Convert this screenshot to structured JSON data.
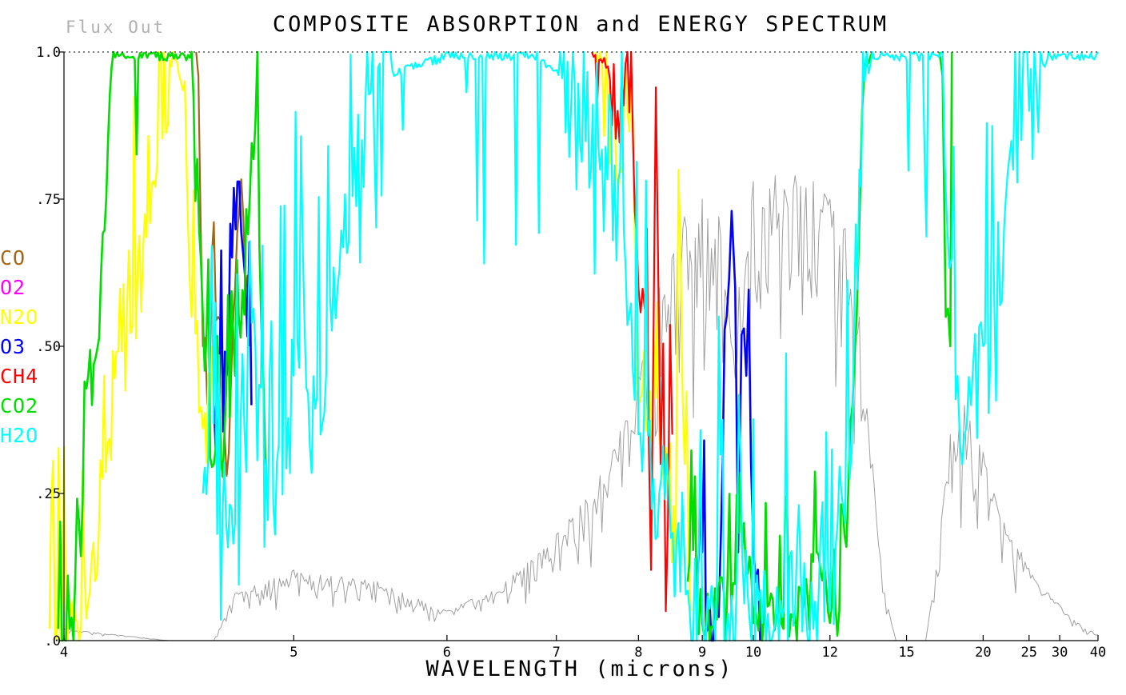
{
  "chart_data": {
    "type": "line",
    "title": "COMPOSITE ABSORPTION and ENERGY SPECTRUM",
    "flux_label": "Flux Out",
    "xlabel": "WAVELENGTH (microns)",
    "x_scale": "reciprocal",
    "xlim": [
      4,
      40
    ],
    "ylim": [
      0,
      1
    ],
    "x_ticks": [
      {
        "value": 4,
        "label": "4"
      },
      {
        "value": 5,
        "label": "5"
      },
      {
        "value": 6,
        "label": "6"
      },
      {
        "value": 7,
        "label": "7"
      },
      {
        "value": 8,
        "label": "8"
      },
      {
        "value": 9,
        "label": "9"
      },
      {
        "value": 10,
        "label": "10"
      },
      {
        "value": 12,
        "label": "12"
      },
      {
        "value": 15,
        "label": "15"
      },
      {
        "value": 20,
        "label": "20"
      },
      {
        "value": 25,
        "label": "25"
      },
      {
        "value": 30,
        "label": "30"
      },
      {
        "value": 40,
        "label": "40"
      }
    ],
    "y_ticks": [
      {
        "value": 0,
        "label": ".0"
      },
      {
        "value": 0.25,
        "label": ".25"
      },
      {
        "value": 0.5,
        "label": ".50"
      },
      {
        "value": 0.75,
        "label": ".75"
      },
      {
        "value": 1.0,
        "label": "1.0"
      }
    ],
    "legend": [
      {
        "label": "CO",
        "color": "#a0661a"
      },
      {
        "label": "O2",
        "color": "#ff00ff"
      },
      {
        "label": "N2O",
        "color": "#ffff00"
      },
      {
        "label": "O3",
        "color": "#0000ff"
      },
      {
        "label": "CH4",
        "color": "#ff0000"
      },
      {
        "label": "CO2",
        "color": "#00dd00"
      },
      {
        "label": "H2O",
        "color": "#00ffff"
      }
    ],
    "series": [
      {
        "key": "flux_out",
        "color": "#a0a0a0",
        "noise": 0.55,
        "seed": 11,
        "points": [
          [
            4.0,
            0.02
          ],
          [
            4.4,
            0.0
          ],
          [
            4.6,
            0.0
          ],
          [
            4.7,
            0.08
          ],
          [
            5.0,
            0.12
          ],
          [
            5.5,
            0.1
          ],
          [
            6.0,
            0.05
          ],
          [
            6.5,
            0.1
          ],
          [
            7.0,
            0.18
          ],
          [
            7.5,
            0.28
          ],
          [
            8.0,
            0.45
          ],
          [
            8.3,
            0.6
          ],
          [
            8.7,
            0.72
          ],
          [
            9.0,
            0.75
          ],
          [
            9.3,
            0.72
          ],
          [
            9.5,
            0.55
          ],
          [
            9.7,
            0.6
          ],
          [
            10.0,
            0.78
          ],
          [
            10.5,
            0.79
          ],
          [
            11.0,
            0.79
          ],
          [
            11.5,
            0.78
          ],
          [
            12.0,
            0.75
          ],
          [
            12.5,
            0.7
          ],
          [
            13.0,
            0.55
          ],
          [
            13.5,
            0.3
          ],
          [
            14.0,
            0.08
          ],
          [
            14.5,
            0.0
          ],
          [
            16.0,
            0.0
          ],
          [
            16.6,
            0.12
          ],
          [
            17.5,
            0.35
          ],
          [
            18.5,
            0.4
          ],
          [
            20.0,
            0.32
          ],
          [
            21.0,
            0.25
          ],
          [
            22.0,
            0.2
          ],
          [
            24.0,
            0.15
          ],
          [
            26.0,
            0.1
          ],
          [
            28.0,
            0.08
          ],
          [
            30.0,
            0.06
          ],
          [
            34.0,
            0.03
          ],
          [
            40.0,
            0.01
          ]
        ]
      },
      {
        "key": "CO",
        "color": "#a0661a",
        "noise": 0.5,
        "seed": 3,
        "points": [
          [
            4.52,
            1.0
          ],
          [
            4.55,
            0.5
          ],
          [
            4.58,
            0.38
          ],
          [
            4.62,
            0.55
          ],
          [
            4.66,
            0.28
          ],
          [
            4.7,
            0.6
          ],
          [
            4.74,
            0.72
          ],
          [
            4.77,
            0.5
          ]
        ]
      },
      {
        "key": "N2O",
        "color": "#ffff00",
        "noise": 0.5,
        "seed": 5,
        "points": [
          [
            3.95,
            0.02
          ],
          [
            4.02,
            0.07
          ],
          [
            4.06,
            0.02
          ],
          [
            4.42,
            1.0
          ],
          [
            4.47,
            0.95
          ],
          [
            4.5,
            0.55
          ],
          [
            4.55,
            0.36
          ],
          [
            4.6,
            0.5
          ],
          [
            7.45,
            1.0
          ],
          [
            7.6,
            0.9
          ],
          [
            7.75,
            0.8
          ],
          [
            7.9,
            0.95
          ],
          [
            8.0,
            0.4
          ],
          [
            8.3,
            0.35
          ],
          [
            8.55,
            0.08
          ],
          [
            8.6,
            0.8
          ],
          [
            8.7,
            0.3
          ],
          [
            8.8,
            0.05
          ]
        ]
      },
      {
        "key": "O3",
        "color": "#0000ff",
        "noise": 0.4,
        "seed": 9,
        "points": [
          [
            4.6,
            0.4
          ],
          [
            4.66,
            0.45
          ],
          [
            4.72,
            0.78
          ],
          [
            4.78,
            0.4
          ],
          [
            8.9,
            0.05
          ],
          [
            9.0,
            0.15
          ],
          [
            9.1,
            0.02
          ],
          [
            9.3,
            0.04
          ],
          [
            9.45,
            0.55
          ],
          [
            9.55,
            0.73
          ],
          [
            9.62,
            0.6
          ],
          [
            9.68,
            0.15
          ],
          [
            9.75,
            0.52
          ],
          [
            9.85,
            0.45
          ],
          [
            9.95,
            0.3
          ],
          [
            10.05,
            0.1
          ],
          [
            10.2,
            0.03
          ]
        ]
      },
      {
        "key": "CH4",
        "color": "#ff0000",
        "noise": 0.5,
        "seed": 13,
        "points": [
          [
            7.4,
            1.0
          ],
          [
            7.55,
            0.99
          ],
          [
            7.72,
            0.9
          ],
          [
            7.85,
            1.0
          ],
          [
            8.0,
            0.6
          ],
          [
            8.12,
            0.7
          ],
          [
            8.18,
            0.12
          ],
          [
            8.25,
            0.94
          ],
          [
            8.32,
            0.3
          ],
          [
            8.4,
            0.05
          ],
          [
            8.5,
            0.35
          ]
        ]
      },
      {
        "key": "CO2",
        "color": "#00dd00",
        "noise": 0.35,
        "seed": 17,
        "points": [
          [
            3.98,
            0.02
          ],
          [
            4.02,
            0.02
          ],
          [
            4.1,
            0.4
          ],
          [
            4.18,
            1.0
          ],
          [
            4.5,
            1.0
          ],
          [
            4.55,
            0.55
          ],
          [
            4.6,
            0.3
          ],
          [
            4.7,
            0.45
          ],
          [
            4.8,
            0.88
          ],
          [
            4.85,
            0.3
          ],
          [
            8.75,
            0.1
          ],
          [
            9.0,
            0.03
          ],
          [
            9.4,
            0.08
          ],
          [
            9.8,
            0.2
          ],
          [
            10.0,
            0.03
          ],
          [
            10.4,
            0.08
          ],
          [
            10.7,
            0.02
          ],
          [
            11.2,
            0.05
          ],
          [
            11.6,
            0.15
          ],
          [
            12.0,
            0.03
          ],
          [
            12.3,
            0.05
          ],
          [
            12.6,
            0.25
          ],
          [
            12.9,
            0.55
          ],
          [
            13.1,
            0.9
          ],
          [
            13.2,
            0.98
          ],
          [
            13.5,
            1.0
          ],
          [
            16.8,
            1.0
          ],
          [
            17.0,
            0.96
          ],
          [
            17.2,
            0.55
          ],
          [
            17.5,
            0.5
          ],
          [
            17.6,
            1.0
          ]
        ]
      },
      {
        "key": "H2O",
        "color": "#00ffff",
        "noise": 0.72,
        "seed": 23,
        "points": [
          [
            4.55,
            0.25
          ],
          [
            4.7,
            0.2
          ],
          [
            4.8,
            0.5
          ],
          [
            4.9,
            0.18
          ],
          [
            5.0,
            0.45
          ],
          [
            5.15,
            0.35
          ],
          [
            5.25,
            0.6
          ],
          [
            5.4,
            0.85
          ],
          [
            5.6,
            0.97
          ],
          [
            6.0,
            1.0
          ],
          [
            6.4,
            1.0
          ],
          [
            6.8,
            1.0
          ],
          [
            7.2,
            0.95
          ],
          [
            7.5,
            0.8
          ],
          [
            7.8,
            0.7
          ],
          [
            8.0,
            0.35
          ],
          [
            8.3,
            0.25
          ],
          [
            8.6,
            0.2
          ],
          [
            9.0,
            0.05
          ],
          [
            9.2,
            0.05
          ],
          [
            10.2,
            0.03
          ],
          [
            10.5,
            0.03
          ],
          [
            11.0,
            0.05
          ],
          [
            11.5,
            0.02
          ],
          [
            12.0,
            0.05
          ],
          [
            12.5,
            0.2
          ],
          [
            12.8,
            0.5
          ],
          [
            13.0,
            0.8
          ],
          [
            13.2,
            0.95
          ],
          [
            13.5,
            1.0
          ],
          [
            17.0,
            1.0
          ],
          [
            17.3,
            0.7
          ],
          [
            17.6,
            0.65
          ],
          [
            18.0,
            0.45
          ],
          [
            18.5,
            0.35
          ],
          [
            19.0,
            0.4
          ],
          [
            20.0,
            0.5
          ],
          [
            21.0,
            0.6
          ],
          [
            22.0,
            0.7
          ],
          [
            23.0,
            0.8
          ],
          [
            24.0,
            0.85
          ],
          [
            25.0,
            0.9
          ],
          [
            26.0,
            0.95
          ],
          [
            27.0,
            0.98
          ],
          [
            28.0,
            1.0
          ],
          [
            40.0,
            1.0
          ]
        ]
      }
    ]
  }
}
